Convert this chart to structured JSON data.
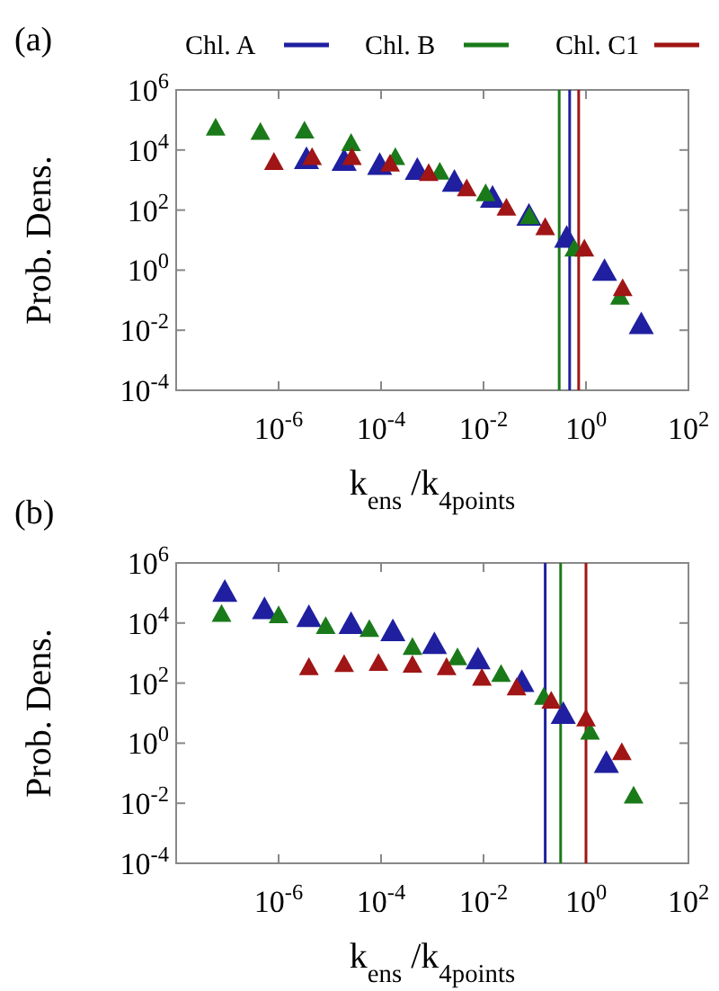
{
  "chart_data": [
    {
      "type": "scatter",
      "title": "(a)",
      "xlabel": "k$_{ens}$/k$_{4points}$",
      "ylabel": "Prob. Dens.",
      "log": "xy",
      "marker": "triangle",
      "legend": "top",
      "grid": false,
      "xlim": [
        1e-08,
        100
      ],
      "ylim": [
        0.0001,
        1000000
      ],
      "xticks": [
        {
          "value": 1e-06,
          "label": "10$^{-6}$"
        },
        {
          "value": 0.0001,
          "label": "10$^{-4}$"
        },
        {
          "value": 0.01,
          "label": "10$^{-2}$"
        },
        {
          "value": 1,
          "label": "10$^{0}$"
        },
        {
          "value": 100,
          "label": "10$^{2}$"
        }
      ],
      "yticks": [
        {
          "value": 0.0001,
          "label": "10$^{-4}$"
        },
        {
          "value": 0.01,
          "label": "10$^{-2}$"
        },
        {
          "value": 1,
          "label": "10$^{0}$"
        },
        {
          "value": 100,
          "label": "10$^{2}$"
        },
        {
          "value": 10000,
          "label": "10$^{4}$"
        },
        {
          "value": 1000000,
          "label": "10$^{6}$"
        }
      ],
      "series": [
        {
          "name": "Chl. A",
          "color": "#1f1fa0",
          "x": [
            3.5e-06,
            1.9e-05,
            9.4e-05,
            0.00051,
            0.0027,
            0.015,
            0.077,
            0.42,
            2.3,
            12
          ],
          "values": [
            5000,
            4400,
            3200,
            2200,
            880,
            260,
            65,
            12,
            0.95,
            0.016
          ]
        },
        {
          "name": "Chl. B",
          "color": "#1a7a1a",
          "x": [
            5.9e-08,
            4.4e-07,
            3.2e-06,
            2.6e-05,
            0.00019,
            0.0014,
            0.011,
            0.079,
            0.59,
            4.6
          ],
          "values": [
            55000,
            40000,
            44000,
            17000,
            5800,
            1900,
            360,
            62,
            5.2,
            0.13
          ]
        },
        {
          "name": "Chl. C1",
          "color": "#a01515",
          "x": [
            8.1e-07,
            4.5e-06,
            2.7e-05,
            0.00015,
            0.00085,
            0.0047,
            0.028,
            0.16,
            0.93,
            5.2
          ],
          "values": [
            4000,
            5800,
            5800,
            3500,
            1700,
            530,
            120,
            27,
            5.2,
            0.25
          ]
        }
      ],
      "ref_lines": [
        {
          "axis": "x",
          "value": 0.48,
          "color": "#1f1fa0"
        },
        {
          "axis": "x",
          "value": 0.3,
          "color": "#1a7a1a"
        },
        {
          "axis": "x",
          "value": 0.72,
          "color": "#a01515"
        }
      ]
    },
    {
      "type": "scatter",
      "title": "(b)",
      "xlabel": "k$_{ens}$/k$_{4points}$",
      "ylabel": "Prob. Dens.",
      "log": "xy",
      "marker": "triangle",
      "grid": false,
      "xlim": [
        1e-08,
        100
      ],
      "ylim": [
        0.0001,
        1000000
      ],
      "xticks": [
        {
          "value": 1e-06,
          "label": "10$^{-6}$"
        },
        {
          "value": 0.0001,
          "label": "10$^{-4}$"
        },
        {
          "value": 0.01,
          "label": "10$^{-2}$"
        },
        {
          "value": 1,
          "label": "10$^{0}$"
        },
        {
          "value": 100,
          "label": "10$^{2}$"
        }
      ],
      "yticks": [
        {
          "value": 0.0001,
          "label": "10$^{-4}$"
        },
        {
          "value": 0.01,
          "label": "10$^{-2}$"
        },
        {
          "value": 1,
          "label": "10$^{0}$"
        },
        {
          "value": 100,
          "label": "10$^{2}$"
        },
        {
          "value": 10000,
          "label": "10$^{4}$"
        },
        {
          "value": 1000000,
          "label": "10$^{6}$"
        }
      ],
      "series": [
        {
          "color": "#1f1fa0",
          "x": [
            8.9e-08,
            5.3e-07,
            3.9e-06,
            2.6e-05,
            0.00017,
            0.0011,
            0.0078,
            0.056,
            0.36,
            2.5
          ],
          "values": [
            110000,
            29000,
            16000,
            9300,
            5400,
            2000,
            620,
            110,
            9.5,
            0.22
          ]
        },
        {
          "color": "#1a7a1a",
          "x": [
            7.7e-08,
            1e-06,
            8.3e-06,
            5.9e-05,
            0.00041,
            0.0031,
            0.022,
            0.15,
            1.2,
            8.5
          ],
          "values": [
            20000,
            18000,
            7900,
            6300,
            1600,
            720,
            200,
            35,
            2.4,
            0.018
          ]
        },
        {
          "color": "#a01515",
          "x": [
            3.9e-06,
            1.9e-05,
            8.9e-05,
            0.00041,
            0.0019,
            0.0093,
            0.044,
            0.21,
            1.0,
            5.0
          ],
          "values": [
            340,
            430,
            470,
            410,
            340,
            150,
            71,
            26,
            6.6,
            0.5
          ]
        }
      ],
      "ref_lines": [
        {
          "axis": "x",
          "value": 0.16,
          "color": "#1f1fa0"
        },
        {
          "axis": "x",
          "value": 0.32,
          "color": "#1a7a1a"
        },
        {
          "axis": "x",
          "value": 1.0,
          "color": "#a01515"
        }
      ]
    }
  ]
}
